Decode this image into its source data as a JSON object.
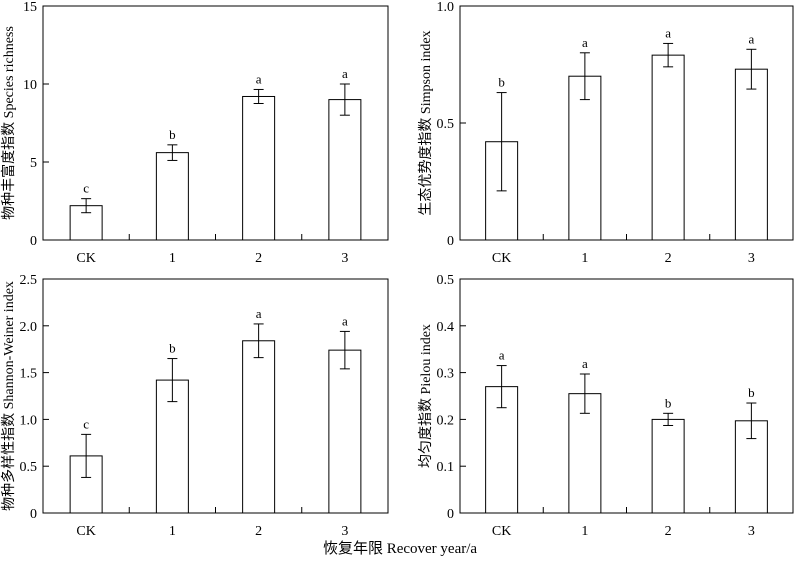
{
  "figure": {
    "shared_xlabel": "恢复年限 Recover year/a"
  },
  "chart_data": [
    {
      "type": "bar",
      "categories": [
        "CK",
        "1",
        "2",
        "3"
      ],
      "values": [
        2.2,
        5.6,
        9.2,
        9.0
      ],
      "error": [
        0.45,
        0.5,
        0.45,
        1.0
      ],
      "significance": [
        "c",
        "b",
        "a",
        "a"
      ],
      "ylabel": "物种丰富度指数 Species richness",
      "ylim": [
        0,
        15
      ],
      "yticks": [
        0,
        5,
        10,
        15
      ],
      "ytick_labels": [
        "0",
        "5",
        "10",
        "15"
      ]
    },
    {
      "type": "bar",
      "categories": [
        "CK",
        "1",
        "2",
        "3"
      ],
      "values": [
        0.42,
        0.7,
        0.79,
        0.73
      ],
      "error": [
        0.21,
        0.1,
        0.05,
        0.085
      ],
      "significance": [
        "b",
        "a",
        "a",
        "a"
      ],
      "ylabel": "生态优势度指数 Simpson index",
      "ylim": [
        0,
        1.0
      ],
      "yticks": [
        0,
        0.5,
        1.0
      ],
      "ytick_labels": [
        "0",
        "0.5",
        "1.0"
      ]
    },
    {
      "type": "bar",
      "categories": [
        "CK",
        "1",
        "2",
        "3"
      ],
      "values": [
        0.61,
        1.42,
        1.84,
        1.74
      ],
      "error": [
        0.23,
        0.23,
        0.18,
        0.2
      ],
      "significance": [
        "c",
        "b",
        "a",
        "a"
      ],
      "ylabel": "物种多样性指数 Shannon-Weiner index",
      "ylim": [
        0,
        2.5
      ],
      "yticks": [
        0,
        0.5,
        1.0,
        1.5,
        2.0,
        2.5
      ],
      "ytick_labels": [
        "0",
        "0.5",
        "1.0",
        "1.5",
        "2.0",
        "2.5"
      ]
    },
    {
      "type": "bar",
      "categories": [
        "CK",
        "1",
        "2",
        "3"
      ],
      "values": [
        0.27,
        0.255,
        0.2,
        0.197
      ],
      "error": [
        0.045,
        0.042,
        0.013,
        0.038
      ],
      "significance": [
        "a",
        "a",
        "b",
        "b"
      ],
      "ylabel": "均匀度指数 Pielou index",
      "ylim": [
        0,
        0.5
      ],
      "yticks": [
        0,
        0.1,
        0.2,
        0.3,
        0.4,
        0.5
      ],
      "ytick_labels": [
        "0",
        "0.1",
        "0.2",
        "0.3",
        "0.4",
        "0.5"
      ]
    }
  ]
}
